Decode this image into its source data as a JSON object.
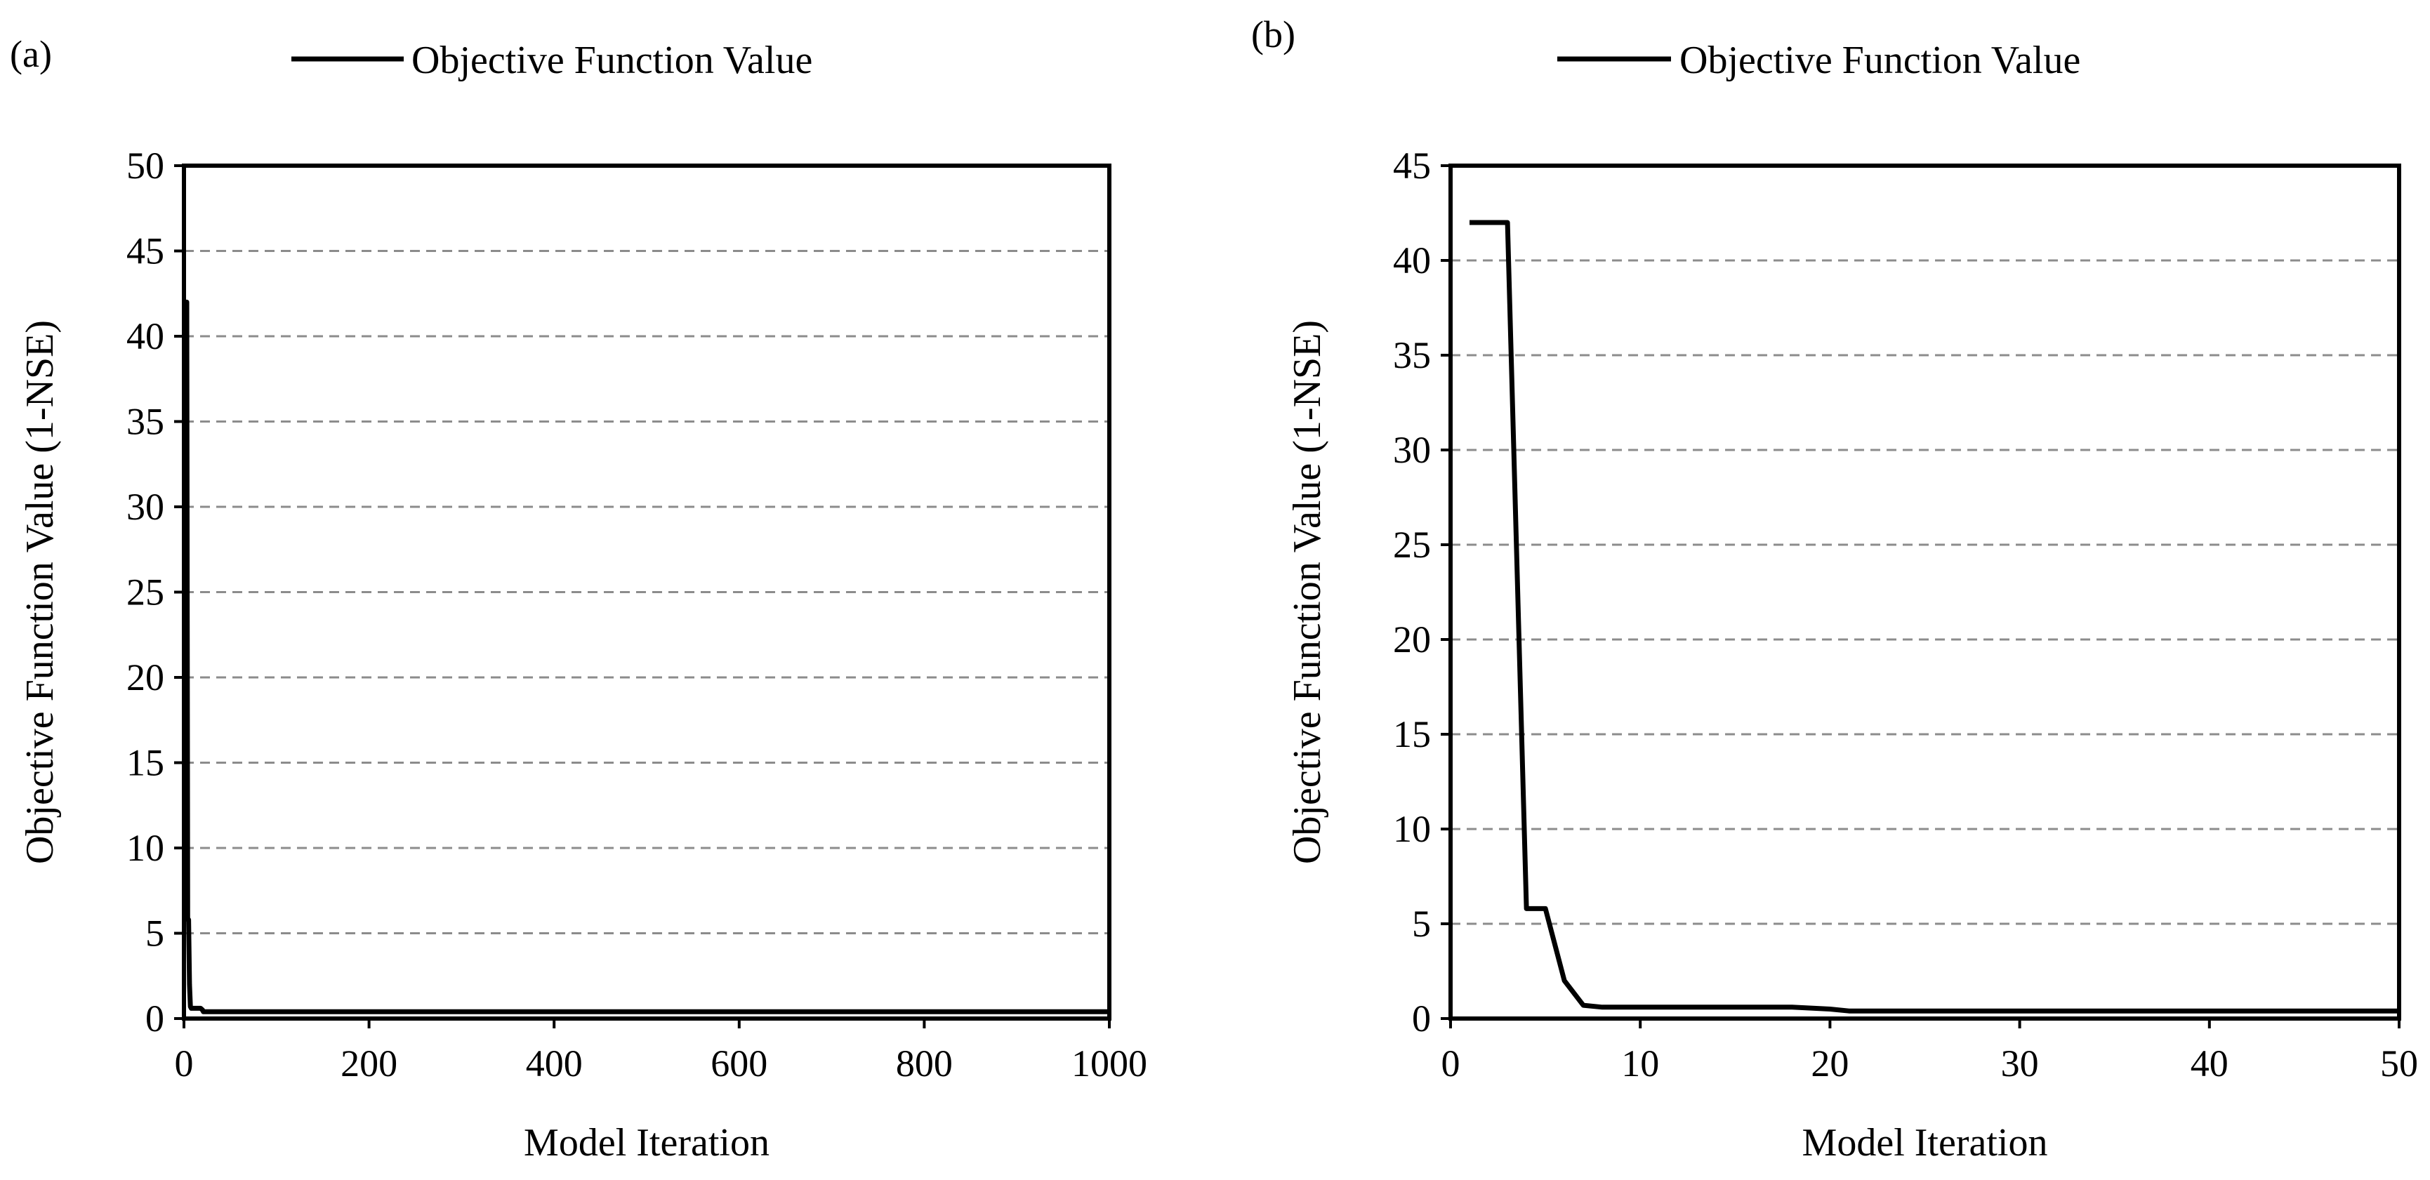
{
  "colors": {
    "series_line": "#000000",
    "frame": "#000000",
    "gridline": "#8c8c8c",
    "background": "#ffffff"
  },
  "chart_data": [
    {
      "type": "line",
      "panel_label": "(a)",
      "xlabel": "Model Iteration",
      "ylabel": "Objective Function Value (1-NSE)",
      "xlim": [
        0,
        1000
      ],
      "ylim": [
        0,
        50
      ],
      "xticks": [
        0,
        200,
        400,
        600,
        800,
        1000
      ],
      "yticks": [
        0,
        5,
        10,
        15,
        20,
        25,
        30,
        35,
        40,
        45,
        50
      ],
      "grid": "horizontal dashed",
      "legend_position": "top-center",
      "series": [
        {
          "name": "Objective Function Value",
          "x": [
            1,
            2,
            3,
            4,
            5,
            6,
            7,
            8,
            10,
            18,
            20,
            21,
            30,
            50,
            100,
            200,
            400,
            600,
            800,
            1000
          ],
          "y": [
            42,
            42,
            42,
            5.8,
            5.8,
            2,
            0.7,
            0.6,
            0.6,
            0.6,
            0.5,
            0.4,
            0.4,
            0.4,
            0.4,
            0.4,
            0.4,
            0.4,
            0.4,
            0.4
          ]
        }
      ]
    },
    {
      "type": "line",
      "panel_label": "(b)",
      "xlabel": "Model Iteration",
      "ylabel": "Objective Function Value (1-NSE)",
      "xlim": [
        0,
        50
      ],
      "ylim": [
        0,
        45
      ],
      "xticks": [
        0,
        10,
        20,
        30,
        40,
        50
      ],
      "yticks": [
        0,
        5,
        10,
        15,
        20,
        25,
        30,
        35,
        40,
        45
      ],
      "grid": "horizontal dashed",
      "legend_position": "top-center",
      "series": [
        {
          "name": "Objective Function Value",
          "x": [
            1,
            2,
            3,
            4,
            5,
            6,
            7,
            8,
            10,
            18,
            20,
            21,
            30,
            40,
            50
          ],
          "y": [
            42,
            42,
            42,
            5.8,
            5.8,
            2,
            0.7,
            0.6,
            0.6,
            0.6,
            0.5,
            0.4,
            0.4,
            0.4,
            0.4
          ]
        }
      ]
    }
  ]
}
